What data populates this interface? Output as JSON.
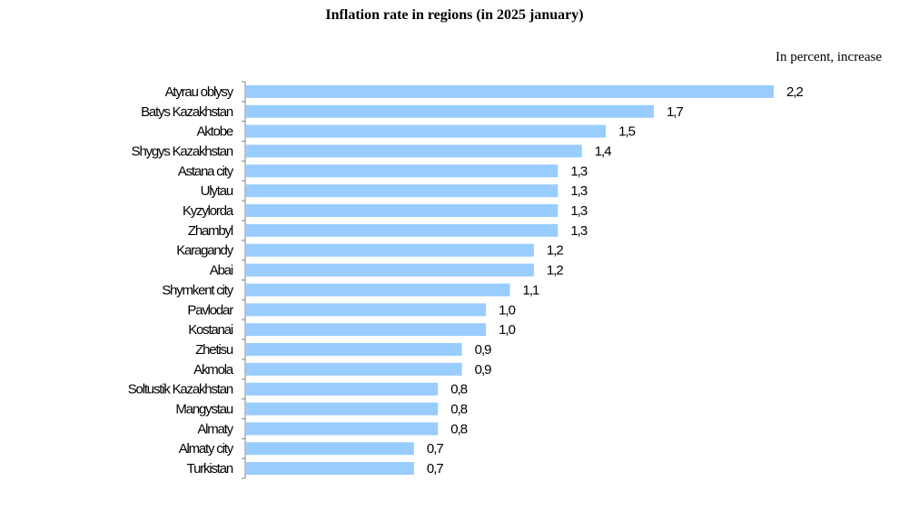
{
  "chart_data": {
    "type": "bar",
    "orientation": "horizontal",
    "title": "Inflation rate in regions (in 2025 january)",
    "unit_label": "In percent, increase",
    "categories": [
      "Atyrau oblysy",
      "Batys Kazakhstan",
      "Aktobe",
      "Shygys Kazakhstan",
      "Astana city",
      "Ulytau",
      "Kyzylorda",
      "Zhambyl",
      "Karagandy",
      "Abai",
      "Shymkent city",
      "Pavlodar",
      "Kostanai",
      "Zhetisu",
      "Akmola",
      "Soltustik Kazakhstan",
      "Mangystau",
      "Almaty",
      "Almaty city",
      "Turkistan"
    ],
    "values": [
      2.2,
      1.7,
      1.5,
      1.4,
      1.3,
      1.3,
      1.3,
      1.3,
      1.2,
      1.2,
      1.1,
      1.0,
      1.0,
      0.9,
      0.9,
      0.8,
      0.8,
      0.8,
      0.7,
      0.7
    ],
    "value_labels": [
      "2,2",
      "1,7",
      "1,5",
      "1,4",
      "1,3",
      "1,3",
      "1,3",
      "1,3",
      "1,2",
      "1,2",
      "1,1",
      "1,0",
      "1,0",
      "0,9",
      "0,9",
      "0,8",
      "0,8",
      "0,8",
      "0,7",
      "0,7"
    ],
    "xlim": [
      0,
      2.2
    ],
    "bar_color": "#99ccff",
    "grid": false,
    "legend": "none"
  }
}
